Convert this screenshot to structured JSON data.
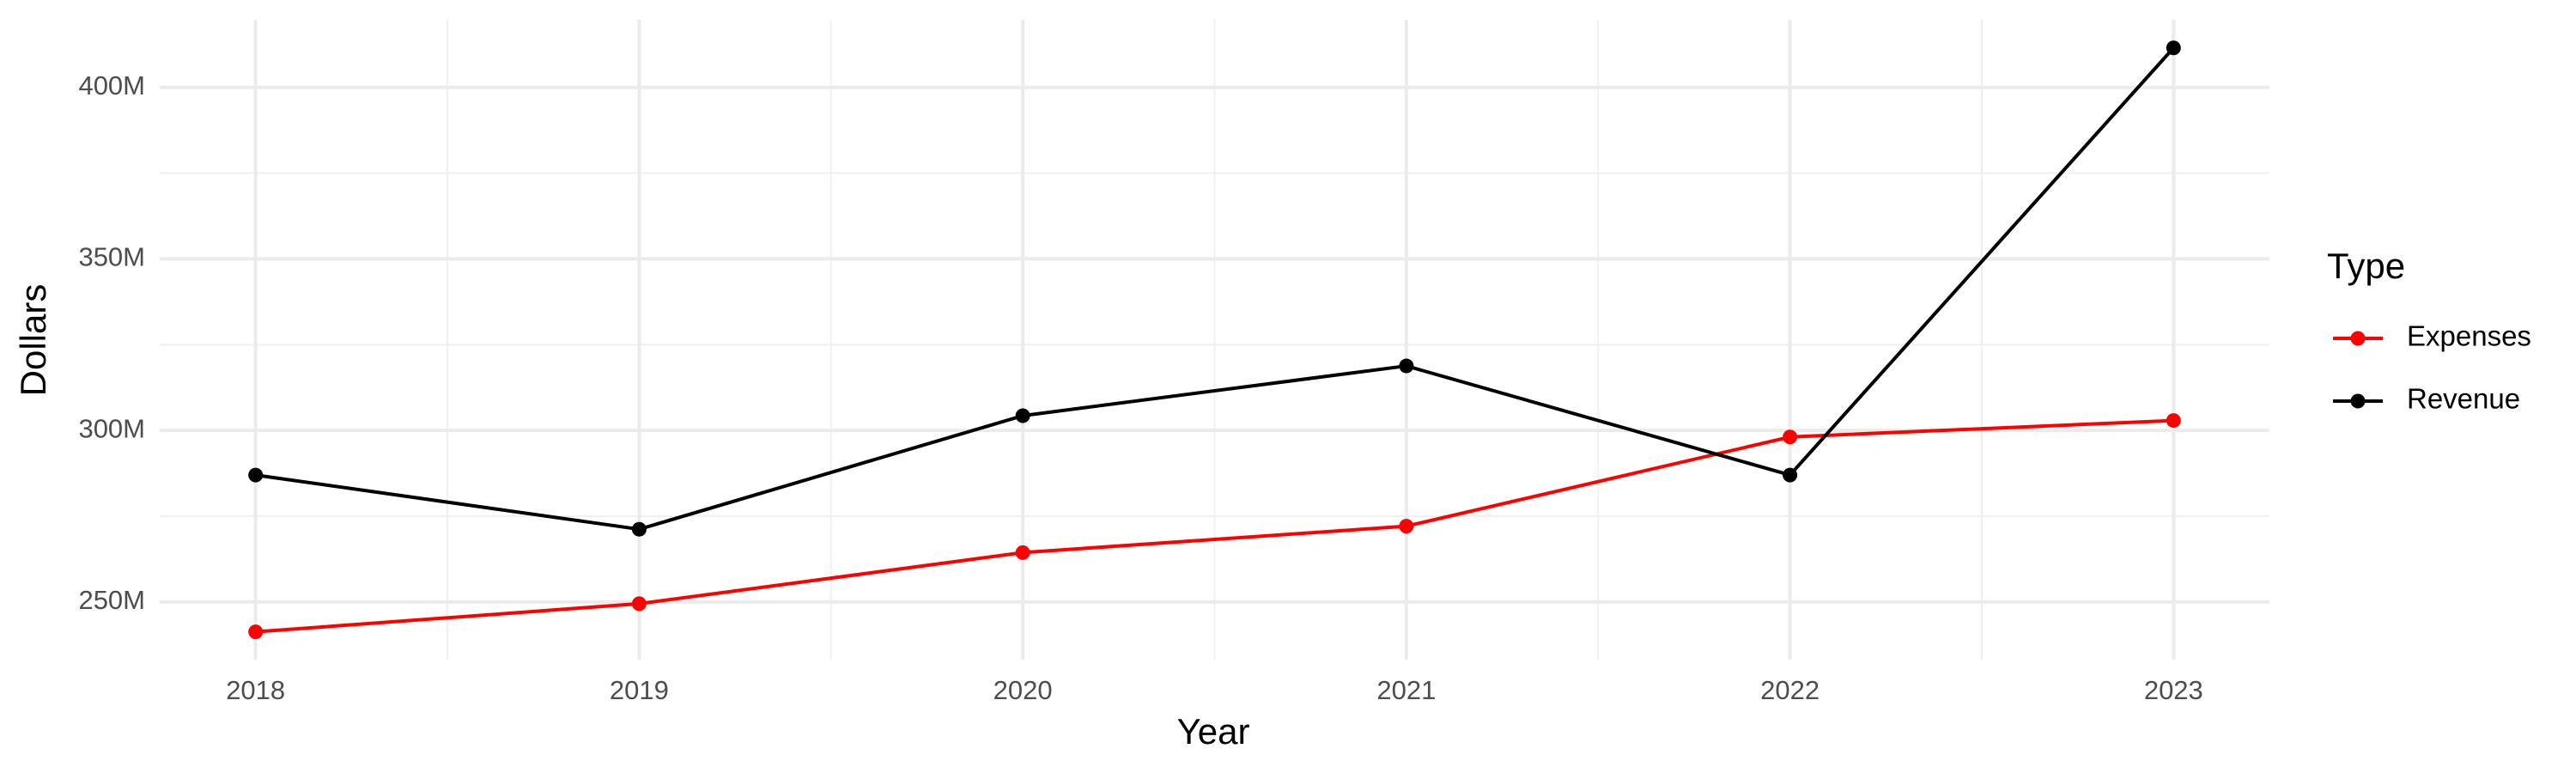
{
  "chart_data": {
    "type": "line",
    "x_label": "Year",
    "y_label": "Dollars",
    "legend_title": "Type",
    "legend": "right",
    "grid": true,
    "x": [
      2018,
      2019,
      2020,
      2021,
      2022,
      2023
    ],
    "series": [
      {
        "name": "Expenses",
        "color": "#ff0000",
        "values": [
          241300000,
          249500000,
          264400000,
          272100000,
          298100000,
          302900000
        ]
      },
      {
        "name": "Revenue",
        "color": "#000000",
        "values": [
          287000000,
          271200000,
          304300000,
          318800000,
          287000000,
          411500000
        ]
      }
    ],
    "xlim": [
      2017.75,
      2023.25
    ],
    "xticks": [
      2018,
      2019,
      2020,
      2021,
      2022,
      2023
    ],
    "ylim": [
      233200000,
      419700000
    ],
    "yticks": [
      {
        "value": 250000000,
        "label": "250M"
      },
      {
        "value": 300000000,
        "label": "300M"
      },
      {
        "value": 350000000,
        "label": "350M"
      },
      {
        "value": 400000000,
        "label": "400M"
      }
    ]
  }
}
